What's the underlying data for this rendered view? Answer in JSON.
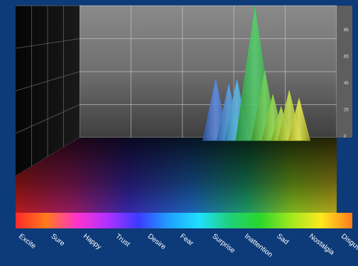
{
  "chart_data": {
    "type": "area",
    "categories": [
      "Excite",
      "Sure",
      "Happy",
      "Trust",
      "Desire",
      "Fear",
      "Surprise",
      "Inattention",
      "Sad",
      "Nostalgia",
      "Disgust"
    ],
    "y_ticks": [
      "85",
      "65",
      "45",
      "25",
      "0"
    ],
    "peaks": [
      {
        "position": 5.95,
        "value": 46,
        "color": "#3b6fd6"
      },
      {
        "position": 6.35,
        "value": 42,
        "color": "#3a86d8"
      },
      {
        "position": 6.6,
        "value": 45,
        "color": "#3aa6dc"
      },
      {
        "position": 7.15,
        "value": 100,
        "color": "#2fbf4a"
      },
      {
        "position": 7.45,
        "value": 52,
        "color": "#52c43a"
      },
      {
        "position": 7.7,
        "value": 34,
        "color": "#7fd032"
      },
      {
        "position": 7.95,
        "value": 25,
        "color": "#9ad62c"
      },
      {
        "position": 8.2,
        "value": 37,
        "color": "#b8d82a"
      },
      {
        "position": 8.5,
        "value": 31,
        "color": "#d9de2a"
      }
    ],
    "spectrum_colors": [
      "#ff2a2a",
      "#ff7a1a",
      "#ff33cc",
      "#b030ff",
      "#3b3bff",
      "#1fa0ff",
      "#1fe0ff",
      "#1fd07a",
      "#2ad62a",
      "#a0e81f",
      "#ffe81f",
      "#ff7a1a"
    ],
    "grid": true
  }
}
